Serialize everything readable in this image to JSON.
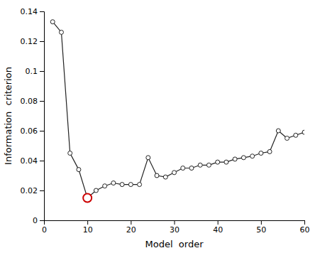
{
  "chart_data": {
    "type": "line",
    "x_label": "Model  order",
    "y_label": "Information  criterion",
    "xlim": [
      0,
      60
    ],
    "ylim": [
      0,
      0.14
    ],
    "xticks": [
      0,
      10,
      20,
      30,
      40,
      50,
      60
    ],
    "yticks": [
      0,
      0.02,
      0.04,
      0.06,
      0.08,
      0.1,
      0.12,
      0.14
    ],
    "grid": false,
    "series": [
      {
        "x": [
          2,
          4,
          6,
          8,
          10,
          12,
          14,
          16,
          18,
          20,
          22,
          24,
          26,
          28,
          30,
          32,
          34,
          36,
          38,
          40,
          42,
          44,
          46,
          48,
          50,
          52,
          54,
          56,
          58,
          60
        ],
        "values": [
          0.133,
          0.126,
          0.045,
          0.034,
          0.015,
          0.02,
          0.023,
          0.025,
          0.024,
          0.024,
          0.024,
          0.042,
          0.03,
          0.029,
          0.032,
          0.035,
          0.035,
          0.037,
          0.037,
          0.039,
          0.039,
          0.041,
          0.042,
          0.043,
          0.045,
          0.046,
          0.06,
          0.055,
          0.057,
          0.059
        ],
        "color": "#222222",
        "marker": "circle",
        "line_style": "solid"
      },
      {
        "x": [
          10
        ],
        "values": [
          0.015
        ],
        "color": "#cc0000",
        "marker": "circle",
        "line_style": "none"
      }
    ]
  }
}
